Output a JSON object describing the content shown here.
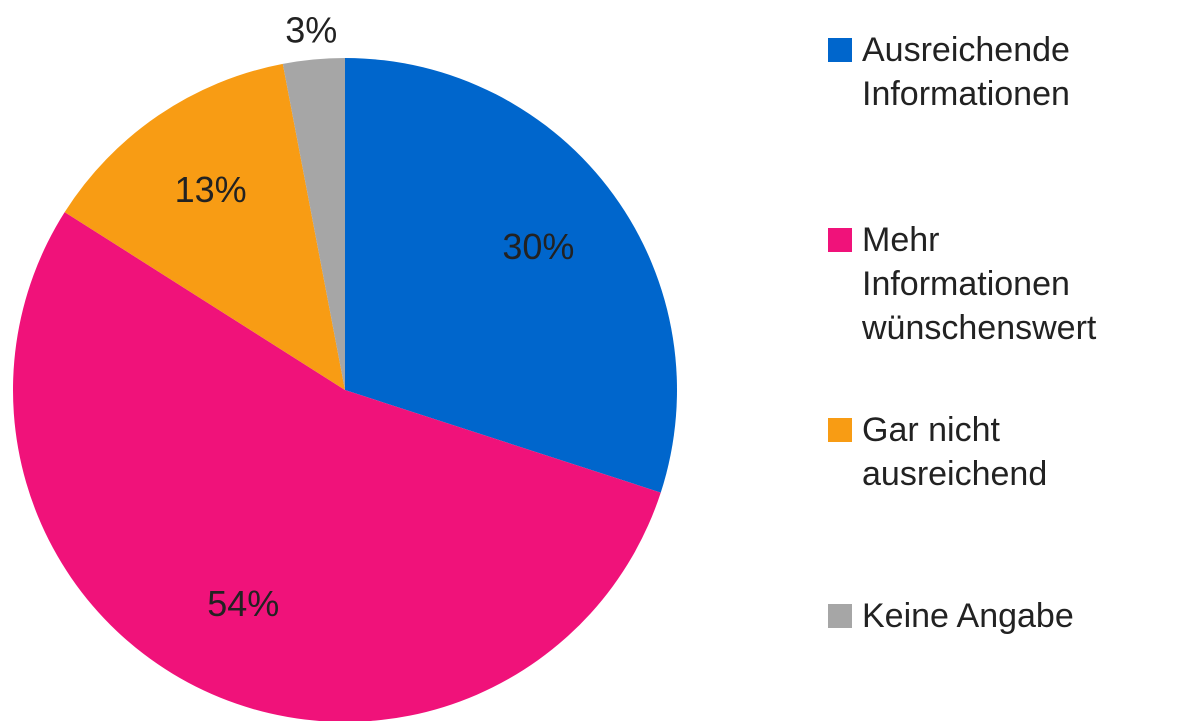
{
  "chart_data": {
    "type": "pie",
    "categories": [
      "Ausreichende Informationen",
      "Mehr Informationen wünschenswert",
      "Gar nicht ausreichend",
      "Keine Angabe"
    ],
    "values": [
      30,
      54,
      13,
      3
    ],
    "value_labels": [
      "30%",
      "54%",
      "13%",
      "3%"
    ],
    "colors": [
      "#0066cc",
      "#f0127a",
      "#f89c14",
      "#a6a6a6"
    ],
    "legend": "right"
  }
}
